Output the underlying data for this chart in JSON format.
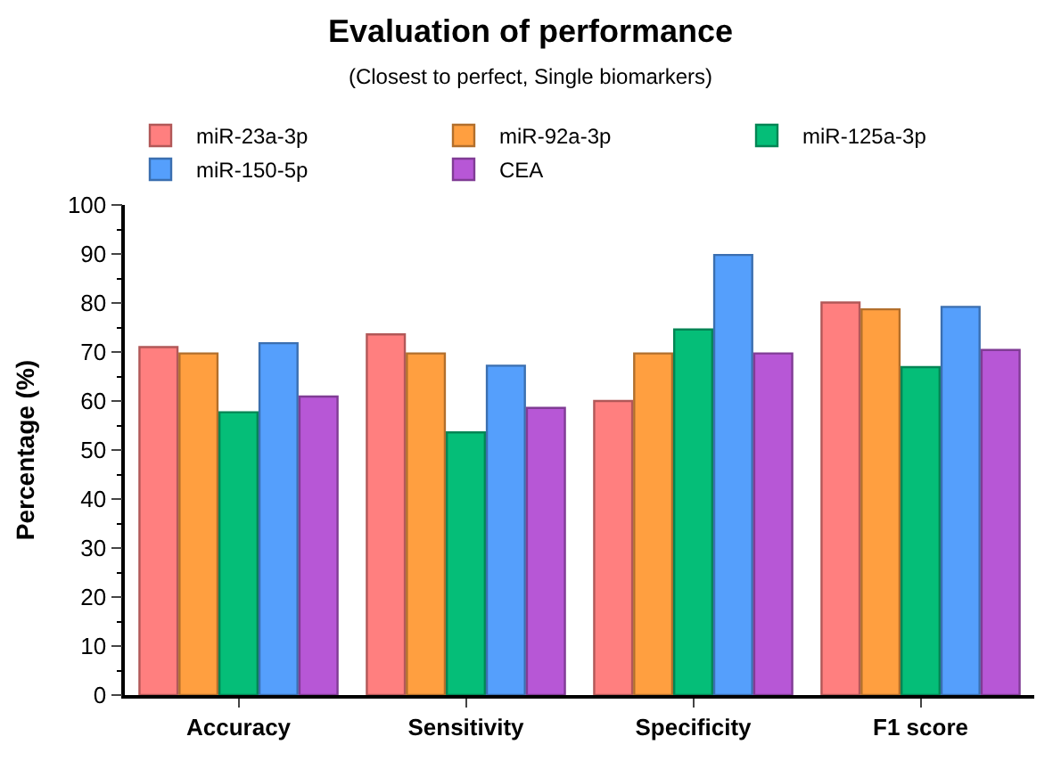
{
  "chart_data": {
    "type": "bar",
    "title": "Evaluation of performance",
    "subtitle": "(Closest to perfect, Single biomarkers)",
    "ylabel": "Percentage (%)",
    "categories": [
      "Accuracy",
      "Sensitivity",
      "Specificity",
      "F1 score"
    ],
    "series": [
      {
        "name": "miR-23a-3p",
        "color": "#ff7f7f",
        "values": [
          71.0,
          73.6,
          60.0,
          80.1
        ]
      },
      {
        "name": "miR-92a-3p",
        "color": "#ff9f40",
        "values": [
          69.7,
          69.7,
          69.7,
          78.7
        ]
      },
      {
        "name": "miR-125a-3p",
        "color": "#05be78",
        "values": [
          57.7,
          53.6,
          74.6,
          66.9
        ]
      },
      {
        "name": "miR-150-5p",
        "color": "#559ffc",
        "values": [
          71.8,
          67.2,
          89.8,
          79.2
        ]
      },
      {
        "name": "CEA",
        "color": "#b757d6",
        "values": [
          60.9,
          58.6,
          69.7,
          70.4
        ]
      }
    ],
    "ylim": [
      0,
      100
    ],
    "yticks": [
      0,
      10,
      20,
      30,
      40,
      50,
      60,
      70,
      80,
      90,
      100
    ],
    "legend": "top"
  }
}
